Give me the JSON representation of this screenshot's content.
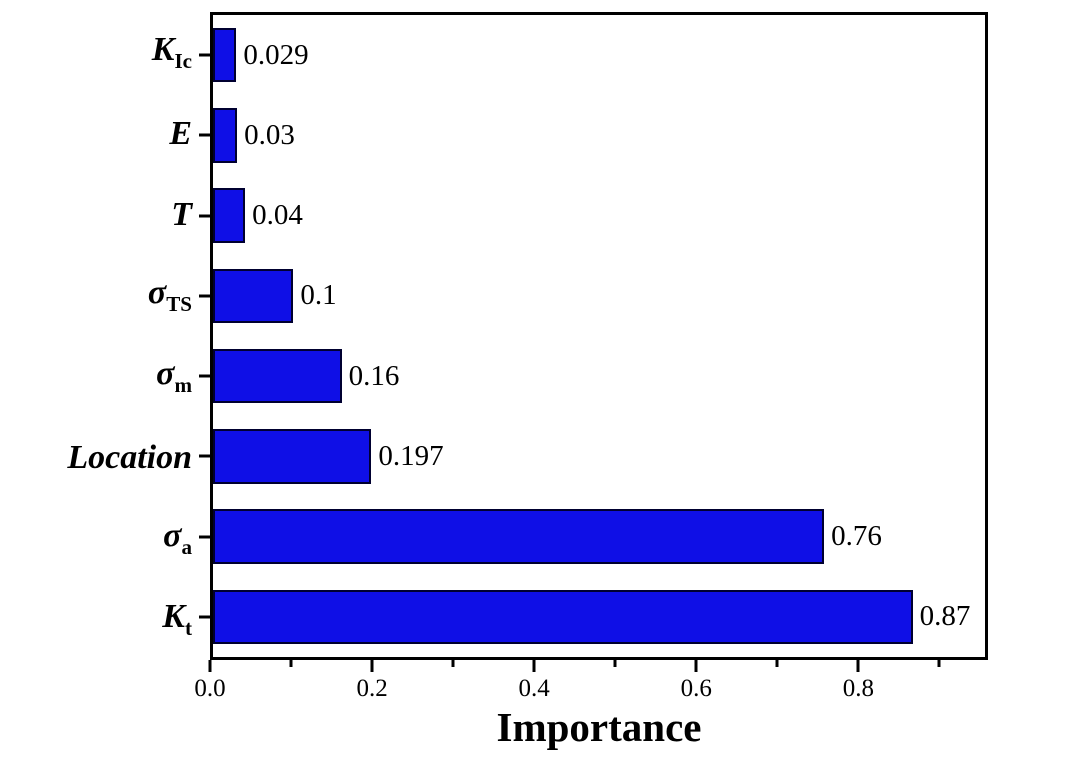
{
  "chart_data": {
    "type": "bar",
    "orientation": "horizontal",
    "title": "",
    "xlabel": "Importance",
    "ylabel": "",
    "xlim": [
      0,
      0.96
    ],
    "grid": false,
    "legend": false,
    "bar_color": "#0f0fe6",
    "bar_border_color": "#000030",
    "axis_color": "#000000",
    "background_color": "#ffffff",
    "xticks": [
      0.0,
      0.2,
      0.4,
      0.6,
      0.8
    ],
    "xtick_labels": [
      "0.0",
      "0.2",
      "0.4",
      "0.6",
      "0.8"
    ],
    "minor_xticks": [
      0.1,
      0.3,
      0.5,
      0.7,
      0.9
    ],
    "categories": [
      {
        "main": "K",
        "sub": "Ic"
      },
      {
        "main": "E",
        "sub": ""
      },
      {
        "main": "T",
        "sub": ""
      },
      {
        "main": "σ",
        "sub": "TS"
      },
      {
        "main": "σ",
        "sub": "m"
      },
      {
        "main": "Location",
        "sub": ""
      },
      {
        "main": "σ",
        "sub": "a"
      },
      {
        "main": "K",
        "sub": "t"
      }
    ],
    "values": [
      0.029,
      0.03,
      0.04,
      0.1,
      0.16,
      0.197,
      0.76,
      0.87
    ],
    "value_labels": [
      "0.029",
      "0.03",
      "0.04",
      "0.1",
      "0.16",
      "0.197",
      "0.76",
      "0.87"
    ]
  }
}
